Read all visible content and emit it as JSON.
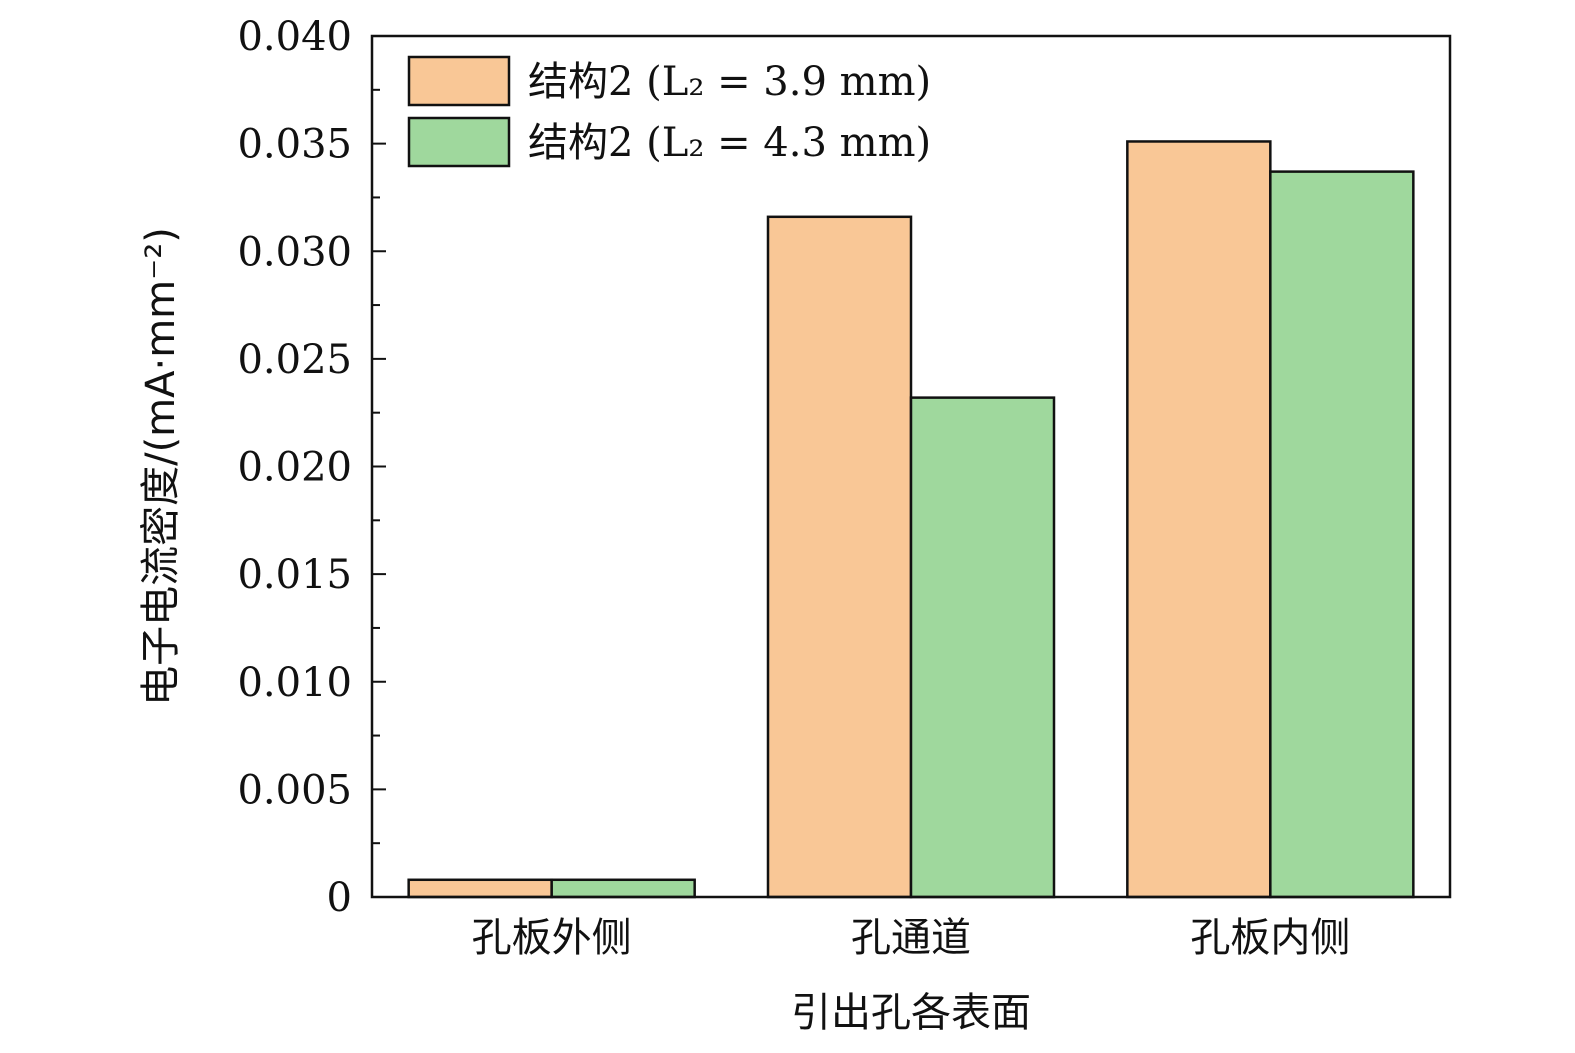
{
  "chart_data": {
    "type": "bar",
    "xlabel": "引出孔各表面",
    "ylabel": "电子电流密度/(mA·mm⁻²)",
    "categories": [
      "孔板外侧",
      "孔通道",
      "孔板内侧"
    ],
    "series": [
      {
        "name": "结构2 (L₂ = 3.9 mm)",
        "color": "#f9c796",
        "values": [
          0.0008,
          0.0316,
          0.0351
        ]
      },
      {
        "name": "结构2 (L₂ = 4.3 mm)",
        "color": "#9fd89d",
        "values": [
          0.0008,
          0.0232,
          0.0337
        ]
      }
    ],
    "ylim": [
      0,
      0.04
    ],
    "yticks": [
      {
        "value": 0,
        "label": "0"
      },
      {
        "value": 0.005,
        "label": "0.005"
      },
      {
        "value": 0.01,
        "label": "0.010"
      },
      {
        "value": 0.015,
        "label": "0.015"
      },
      {
        "value": 0.02,
        "label": "0.020"
      },
      {
        "value": 0.025,
        "label": "0.025"
      },
      {
        "value": 0.03,
        "label": "0.030"
      },
      {
        "value": 0.035,
        "label": "0.035"
      },
      {
        "value": 0.04,
        "label": "0.040"
      }
    ],
    "yminor_step": 0.0025,
    "legend_position": "top-left",
    "grid": false
  }
}
